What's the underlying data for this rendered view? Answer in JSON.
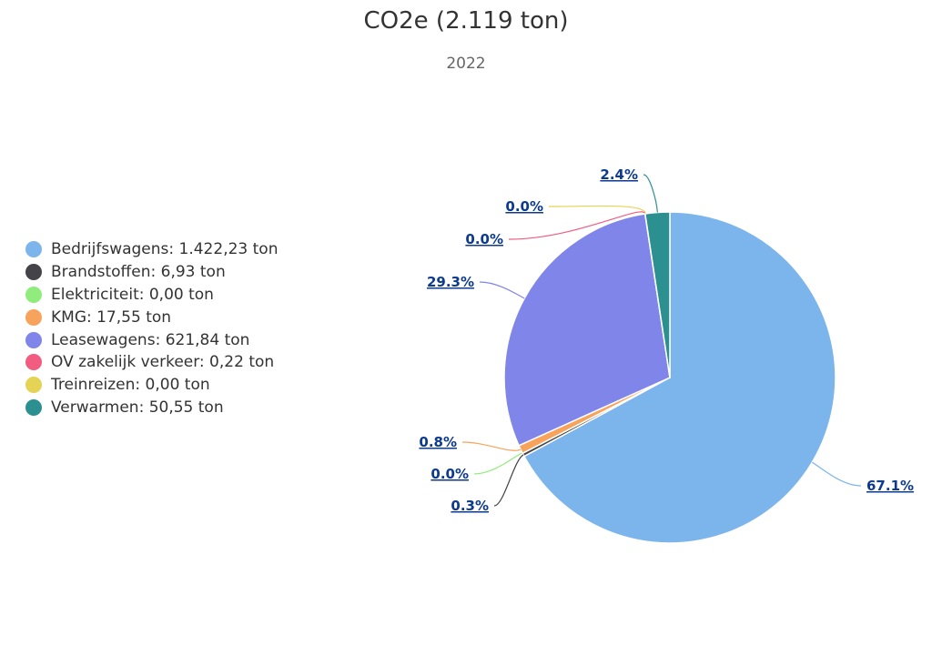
{
  "chart_data": {
    "type": "pie",
    "title": "CO2e (2.119 ton)",
    "subtitle": "2022",
    "legend_position": "left",
    "unit": "ton",
    "slices": [
      {
        "name": "Bedrijfswagens",
        "value": 1422.23,
        "legend_label": "Bedrijfswagens: 1.422,23 ton",
        "percent_label": "67.1%",
        "color": "#7cb5ec"
      },
      {
        "name": "Brandstoffen",
        "value": 6.93,
        "legend_label": "Brandstoffen: 6,93 ton",
        "percent_label": "0.3%",
        "color": "#434348"
      },
      {
        "name": "Elektriciteit",
        "value": 0.0,
        "legend_label": "Elektriciteit: 0,00 ton",
        "percent_label": "0.0%",
        "color": "#90ed7d"
      },
      {
        "name": "KMG",
        "value": 17.55,
        "legend_label": "KMG: 17,55 ton",
        "percent_label": "0.8%",
        "color": "#f7a35c"
      },
      {
        "name": "Leasewagens",
        "value": 621.84,
        "legend_label": "Leasewagens: 621,84 ton",
        "percent_label": "29.3%",
        "color": "#8085e9"
      },
      {
        "name": "OV zakelijk verkeer",
        "value": 0.22,
        "legend_label": "OV zakelijk verkeer: 0,22 ton",
        "percent_label": "0.0%",
        "color": "#f15c80"
      },
      {
        "name": "Treinreizen",
        "value": 0.0,
        "legend_label": "Treinreizen: 0,00 ton",
        "percent_label": "0.0%",
        "color": "#e4d354"
      },
      {
        "name": "Verwarmen",
        "value": 50.55,
        "legend_label": "Verwarmen: 50,55 ton",
        "percent_label": "2.4%",
        "color": "#2b908f"
      }
    ]
  }
}
